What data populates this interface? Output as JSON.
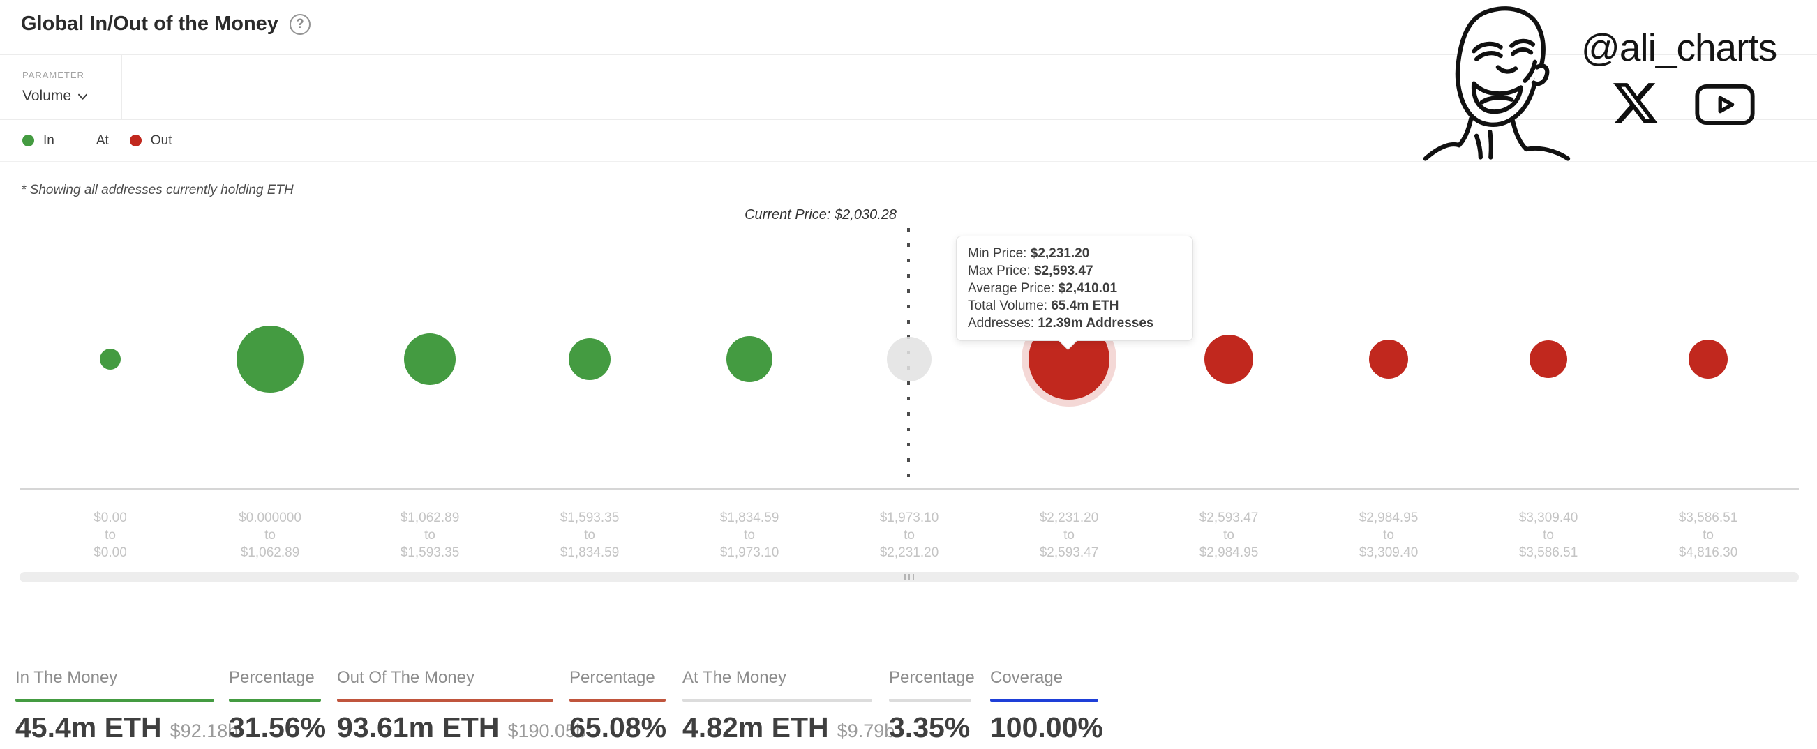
{
  "header": {
    "title": "Global In/Out of the Money",
    "help_icon": "?"
  },
  "toolbar": {
    "parameter_label": "PARAMETER",
    "parameter_value": "Volume"
  },
  "legend": {
    "items": [
      {
        "label": "In",
        "color": "#449b41"
      },
      {
        "label": "At",
        "color": "#ffffff"
      },
      {
        "label": "Out",
        "color": "#c1281e"
      }
    ]
  },
  "note": "* Showing all addresses currently holding ETH",
  "branding": {
    "handle": "@ali_charts",
    "icons": [
      "laughing-man-sketch",
      "x-logo",
      "youtube-logo"
    ]
  },
  "tooltip": {
    "rows": [
      {
        "label": "Min Price: ",
        "value": "$2,231.20"
      },
      {
        "label": "Max Price: ",
        "value": "$2,593.47"
      },
      {
        "label": "Average Price: ",
        "value": "$2,410.01"
      },
      {
        "label": "Total Volume: ",
        "value": "65.4m ETH"
      },
      {
        "label": "Addresses: ",
        "value": "12.39m Addresses"
      }
    ]
  },
  "chart_data": {
    "type": "bubble",
    "title": "Global In/Out of the Money",
    "asset": "ETH",
    "current_price": "$2,030.28",
    "current_price_label": "Current Price: $2,030.28",
    "range_separator": "to",
    "legend_position": "top-left",
    "colors": {
      "in": "#449b41",
      "at": "rgba(226,226,226,0.87)",
      "out": "#c1281e"
    },
    "bubbles": [
      {
        "from": "$0.00",
        "to": "$0.00",
        "status": "in",
        "radius_px": 15
      },
      {
        "from": "$0.000000",
        "to": "$1,062.89",
        "status": "in",
        "radius_px": 48
      },
      {
        "from": "$1,062.89",
        "to": "$1,593.35",
        "status": "in",
        "radius_px": 37
      },
      {
        "from": "$1,593.35",
        "to": "$1,834.59",
        "status": "in",
        "radius_px": 30
      },
      {
        "from": "$1,834.59",
        "to": "$1,973.10",
        "status": "in",
        "radius_px": 33
      },
      {
        "from": "$1,973.10",
        "to": "$2,231.20",
        "status": "at",
        "radius_px": 32
      },
      {
        "from": "$2,231.20",
        "to": "$2,593.47",
        "status": "out",
        "radius_px": 58,
        "selected": true,
        "min_price": "$2,231.20",
        "max_price": "$2,593.47",
        "average_price": "$2,410.01",
        "total_volume": "65.4m ETH",
        "addresses": "12.39m Addresses"
      },
      {
        "from": "$2,593.47",
        "to": "$2,984.95",
        "status": "out",
        "radius_px": 35
      },
      {
        "from": "$2,984.95",
        "to": "$3,309.40",
        "status": "out",
        "radius_px": 28
      },
      {
        "from": "$3,309.40",
        "to": "$3,586.51",
        "status": "out",
        "radius_px": 27
      },
      {
        "from": "$3,586.51",
        "to": "$4,816.30",
        "status": "out",
        "radius_px": 28
      }
    ]
  },
  "scrollbar": {
    "grip": "|||"
  },
  "stats": [
    {
      "label": "In The Money",
      "value": "45.4m ETH",
      "sub": "$92.18b",
      "color": "#449b41"
    },
    {
      "label": "Percentage",
      "value": "31.56%",
      "sub": "",
      "color": "#449b41"
    },
    {
      "label": "Out Of The Money",
      "value": "93.61m ETH",
      "sub": "$190.05b",
      "color": "#c0553d"
    },
    {
      "label": "Percentage",
      "value": "65.08%",
      "sub": "",
      "color": "#c0553d"
    },
    {
      "label": "At The Money",
      "value": "4.82m ETH",
      "sub": "$9.79b",
      "color": "#dcdcdc"
    },
    {
      "label": "Percentage",
      "value": "3.35%",
      "sub": "",
      "color": "#dcdcdc"
    },
    {
      "label": "Coverage",
      "value": "100.00%",
      "sub": "",
      "color": "#1e3fd8"
    }
  ]
}
